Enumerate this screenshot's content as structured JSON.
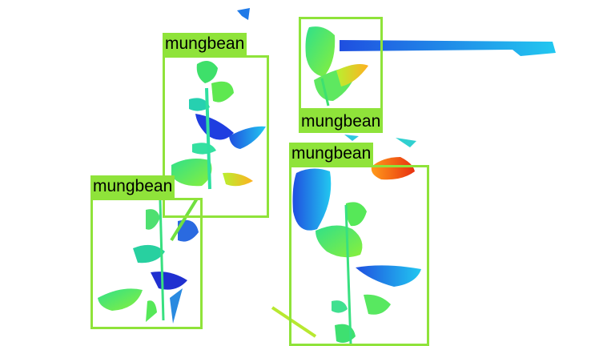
{
  "detections": [
    {
      "label": "mungbean"
    },
    {
      "label": "mungbean"
    },
    {
      "label": "mungbean"
    },
    {
      "label": "mungbean"
    }
  ],
  "colors": {
    "box": "#8fe33a",
    "label_text": "#000000",
    "background": "#ffffff"
  }
}
